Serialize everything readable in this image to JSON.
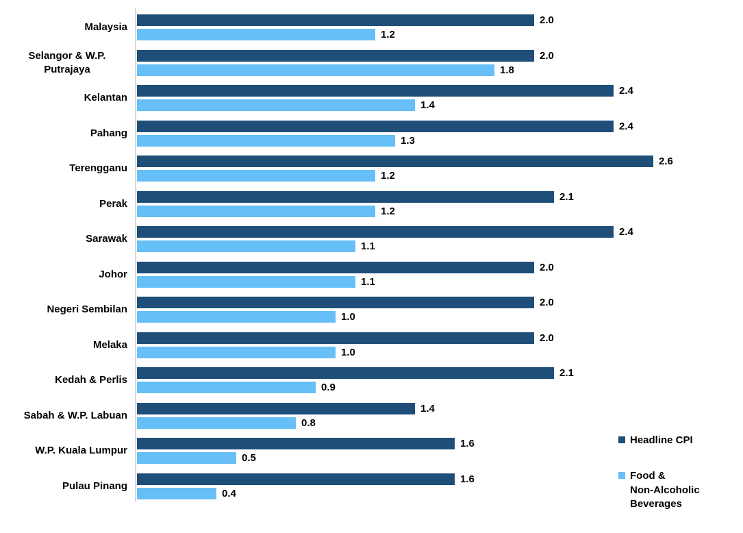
{
  "chart_data": {
    "type": "bar",
    "orientation": "horizontal",
    "title": "",
    "xlabel": "",
    "ylabel": "",
    "grid": false,
    "xlim": [
      0,
      2.9
    ],
    "legend_position": "right-bottom",
    "value_labels": true,
    "categories": [
      "Malaysia",
      "Selangor & W.P. Putrajaya",
      "Kelantan",
      "Pahang",
      "Terengganu",
      "Perak",
      "Sarawak",
      "Johor",
      "Negeri Sembilan",
      "Melaka",
      "Kedah & Perlis",
      "Sabah & W.P. Labuan",
      "W.P. Kuala Lumpur",
      "Pulau Pinang"
    ],
    "series": [
      {
        "name": "Headline CPI",
        "color": "#1F4E79",
        "values": [
          2.0,
          2.0,
          2.4,
          2.4,
          2.6,
          2.1,
          2.4,
          2.0,
          2.0,
          2.0,
          2.1,
          1.4,
          1.6,
          1.6
        ],
        "labels": [
          "2.0",
          "2.0",
          "2.4",
          "2.4",
          "2.6",
          "2.1",
          "2.4",
          "2.0",
          "2.0",
          "2.0",
          "2.1",
          "1.4",
          "1.6",
          "1.6"
        ]
      },
      {
        "name": "Food & Non-Alcoholic Beverages",
        "color": "#66BFF7",
        "values": [
          1.2,
          1.8,
          1.4,
          1.3,
          1.2,
          1.2,
          1.1,
          1.1,
          1.0,
          1.0,
          0.9,
          0.8,
          0.5,
          0.4
        ],
        "labels": [
          "1.2",
          "1.8",
          "1.4",
          "1.3",
          "1.2",
          "1.2",
          "1.1",
          "1.1",
          "1.0",
          "1.0",
          "0.9",
          "0.8",
          "0.5",
          "0.4"
        ]
      }
    ]
  },
  "legend": {
    "items": [
      {
        "label": "Headline CPI",
        "color": "#1F4E79"
      },
      {
        "label": "Food &\nNon-Alcoholic\nBeverages",
        "color": "#66BFF7"
      }
    ]
  }
}
